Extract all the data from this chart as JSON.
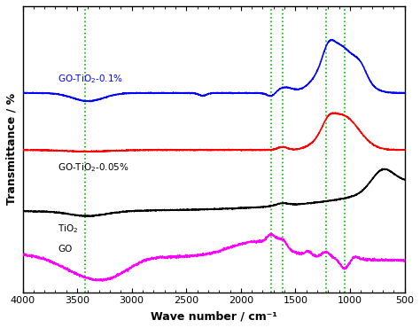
{
  "xlabel": "Wave number / cm⁻¹",
  "ylabel": "Transmittance / %",
  "xlim": [
    4000,
    500
  ],
  "dashed_lines": [
    3430,
    1720,
    1620,
    1220,
    1050
  ],
  "series_colors": {
    "go_tio2_01": "#0000ff",
    "go_tio2_005": "#ff0000",
    "tio2": "#000000",
    "go": "#ff00ff"
  },
  "labels": [
    {
      "text": "GO-TiO$_2$-0.1%",
      "x": 3700,
      "color": "#0000ff"
    },
    {
      "text": "GO-TiO$_2$-0.05%",
      "x": 3700,
      "color": "#000000"
    },
    {
      "text": "TiO$_2$",
      "x": 3700,
      "color": "#000000"
    },
    {
      "text": "GO",
      "x": 3700,
      "color": "#000000"
    }
  ]
}
